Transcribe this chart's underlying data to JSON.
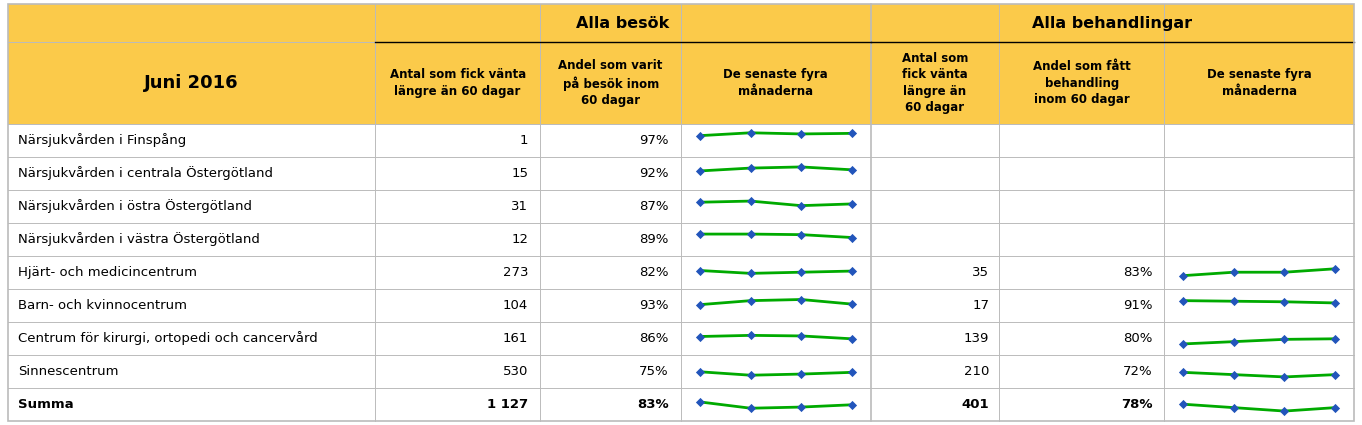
{
  "title": "Juni 2016",
  "header_group1": "Alla besök",
  "header_group2": "Alla behandlingar",
  "col_headers": [
    "Antal som fick vänta\nlängre än 60 dagar",
    "Andel som varit\npå besök inom\n60 dagar",
    "De senaste fyra\nmånaderna",
    "Antal som\nfick vänta\nlängre än\n60 dagar",
    "Andel som fått\nbehandling\ninom 60 dagar",
    "De senaste fyra\nmånaderna"
  ],
  "rows": [
    {
      "name": "Närsjukvården i Finspång",
      "v1": "1",
      "v2": "97%",
      "spark1": [
        0.92,
        0.97,
        0.95,
        0.96
      ],
      "v3": "",
      "v4": "",
      "spark2": null
    },
    {
      "name": "Närsjukvården i centrala Östergötland",
      "v1": "15",
      "v2": "92%",
      "spark1": [
        0.88,
        0.93,
        0.95,
        0.9
      ],
      "v3": "",
      "v4": "",
      "spark2": null
    },
    {
      "name": "Närsjukvården i östra Östergötland",
      "v1": "31",
      "v2": "87%",
      "spark1": [
        0.91,
        0.93,
        0.85,
        0.88
      ],
      "v3": "",
      "v4": "",
      "spark2": null
    },
    {
      "name": "Närsjukvården i västra Östergötland",
      "v1": "12",
      "v2": "89%",
      "spark1": [
        0.93,
        0.93,
        0.92,
        0.87
      ],
      "v3": "",
      "v4": "",
      "spark2": null
    },
    {
      "name": "Hjärt- och medicincentrum",
      "v1": "273",
      "v2": "82%",
      "spark1": [
        0.87,
        0.82,
        0.84,
        0.86
      ],
      "v3": "35",
      "v4": "83%",
      "spark2": [
        0.78,
        0.84,
        0.84,
        0.9
      ]
    },
    {
      "name": "Barn- och kvinnocentrum",
      "v1": "104",
      "v2": "93%",
      "spark1": [
        0.85,
        0.92,
        0.94,
        0.86
      ],
      "v3": "17",
      "v4": "91%",
      "spark2": [
        0.92,
        0.91,
        0.9,
        0.88
      ]
    },
    {
      "name": "Centrum för kirurgi, ortopedi och cancervård",
      "v1": "161",
      "v2": "86%",
      "spark1": [
        0.87,
        0.89,
        0.88,
        0.83
      ],
      "v3": "139",
      "v4": "80%",
      "spark2": [
        0.74,
        0.78,
        0.82,
        0.83
      ]
    },
    {
      "name": "Sinnescentrum",
      "v1": "530",
      "v2": "75%",
      "spark1": [
        0.83,
        0.77,
        0.79,
        0.82
      ],
      "v3": "210",
      "v4": "72%",
      "spark2": [
        0.82,
        0.78,
        0.74,
        0.78
      ]
    },
    {
      "name": "Summa",
      "v1": "1 127",
      "v2": "83%",
      "spark1": [
        0.88,
        0.77,
        0.79,
        0.83
      ],
      "v3": "401",
      "v4": "78%",
      "spark2": [
        0.84,
        0.78,
        0.72,
        0.78
      ],
      "bold": true
    }
  ],
  "header_bg": "#FBCA4A",
  "border_color": "#BBBBBB",
  "line_color_green": "#00AA00",
  "dot_color_blue": "#2255BB"
}
